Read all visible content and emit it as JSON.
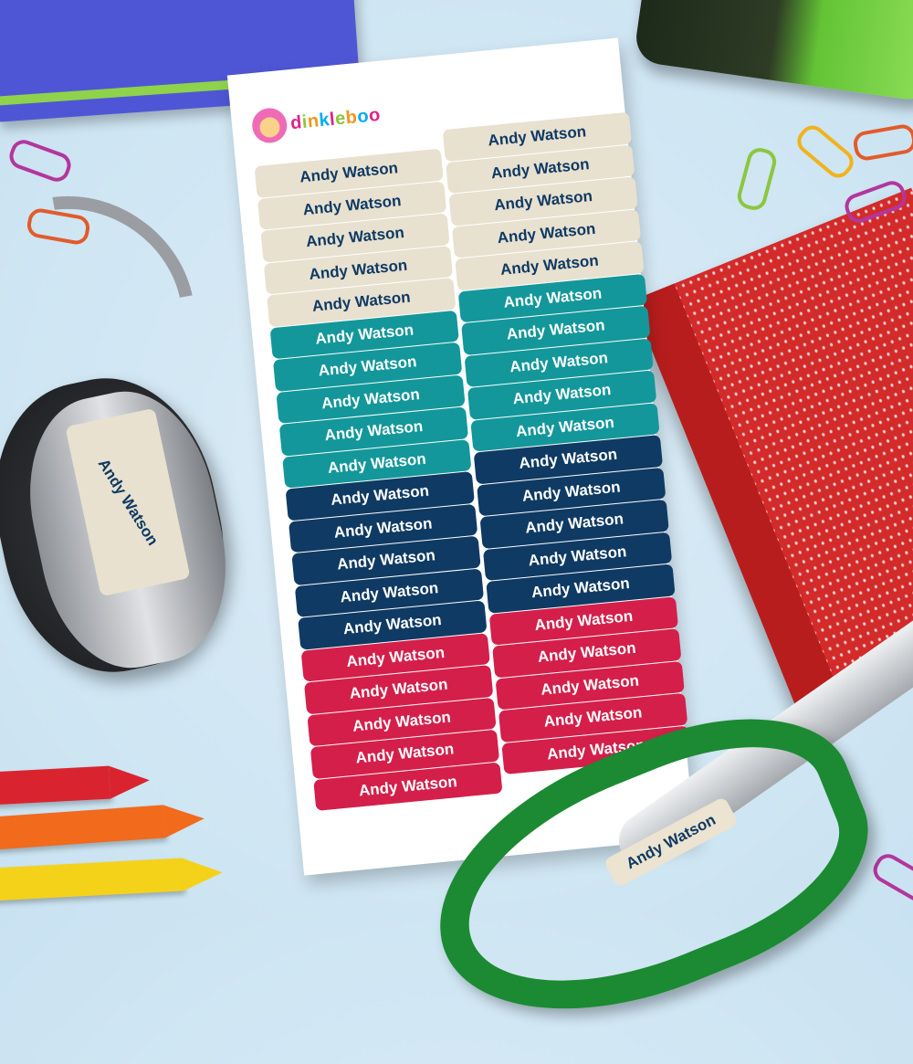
{
  "brand": "dinkleboo",
  "label_text": "Andy Watson",
  "sheet": {
    "columns": 2,
    "label_groups": [
      {
        "color": "#e8e1d0",
        "text_color": "#0f3a63",
        "count_per_column": 5
      },
      {
        "color": "#13979a",
        "text_color": "#ffffff",
        "count_per_column": 5
      },
      {
        "color": "#0f3a63",
        "text_color": "#ffffff",
        "count_per_column": 5
      },
      {
        "color": "#d41f4a",
        "text_color": "#ffffff",
        "count_per_column": 5
      }
    ]
  },
  "headphone_label": "Andy Watson",
  "scissors_label": "Andy Watson",
  "logo_letter_colors": [
    "#e0218a",
    "#8cc63f",
    "#f7941d",
    "#00aeef",
    "#e0218a",
    "#8cc63f",
    "#f7941d",
    "#00aeef",
    "#e0218a"
  ]
}
